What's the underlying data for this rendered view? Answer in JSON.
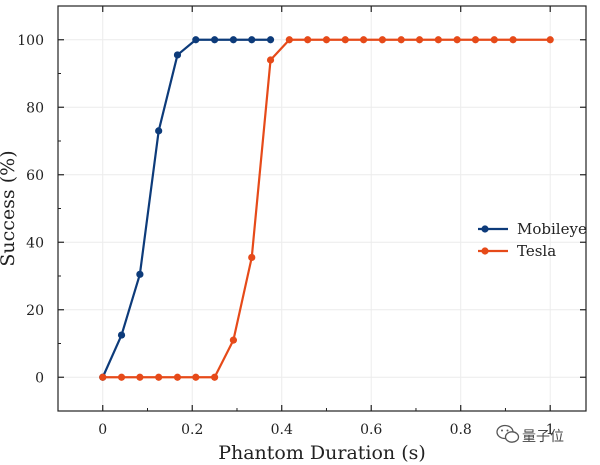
{
  "chart_data": {
    "type": "line",
    "xlabel": "Phantom Duration (s)",
    "ylabel": "Success (%)",
    "xlim": [
      -0.1,
      1.08
    ],
    "ylim": [
      -10,
      110
    ],
    "xticks": [
      0,
      0.2,
      0.4,
      0.6,
      0.8,
      1
    ],
    "xtick_labels": [
      "0",
      "0.2",
      "0.4",
      "0.6",
      "0.8",
      "1"
    ],
    "yticks": [
      0,
      20,
      40,
      60,
      80,
      100
    ],
    "ytick_labels": [
      "0",
      "20",
      "40",
      "60",
      "80",
      "100"
    ],
    "grid": true,
    "legend_position": "right",
    "series": [
      {
        "name": "Mobileye",
        "color": "#0d3b7a",
        "x": [
          0,
          0.042,
          0.083,
          0.125,
          0.167,
          0.208,
          0.25,
          0.292,
          0.333,
          0.375
        ],
        "y": [
          0,
          12.5,
          30.5,
          73,
          95.5,
          100,
          100,
          100,
          100,
          100
        ]
      },
      {
        "name": "Tesla",
        "color": "#e64a19",
        "x": [
          0,
          0.042,
          0.083,
          0.125,
          0.167,
          0.208,
          0.25,
          0.292,
          0.333,
          0.375,
          0.417,
          0.458,
          0.5,
          0.542,
          0.583,
          0.625,
          0.667,
          0.708,
          0.75,
          0.792,
          0.833,
          0.875,
          0.917,
          1.0
        ],
        "y": [
          0,
          0,
          0,
          0,
          0,
          0,
          0,
          11,
          35.5,
          94,
          100,
          100,
          100,
          100,
          100,
          100,
          100,
          100,
          100,
          100,
          100,
          100,
          100,
          100
        ]
      }
    ]
  },
  "watermark": {
    "text": "量子位",
    "icon": "wechat-icon"
  }
}
